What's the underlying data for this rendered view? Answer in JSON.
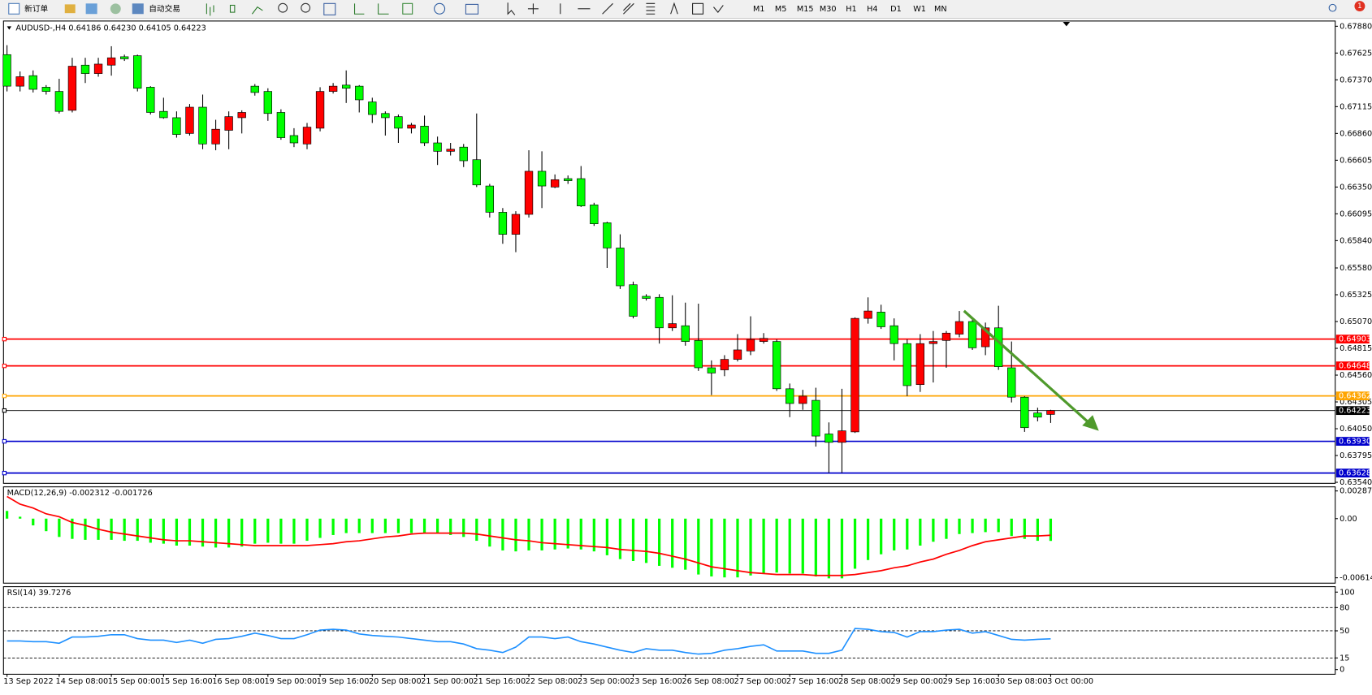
{
  "toolbar": {
    "buttons": [
      "新订单",
      "自动交易"
    ],
    "timeframes": [
      "M1",
      "M5",
      "M15",
      "M30",
      "H1",
      "H4",
      "D1",
      "W1",
      "MN"
    ],
    "badge": "1"
  },
  "chart_data": [
    {
      "type": "candlestick",
      "title": "AUDUSD-,H4  0.64186 0.64230 0.64105 0.64223",
      "categories": [
        "13 Sep 2022",
        null,
        null,
        null,
        "14 Sep 08:00",
        null,
        null,
        null,
        "15 Sep 00:00",
        null,
        null,
        null,
        "15 Sep 16:00",
        null,
        null,
        null,
        "16 Sep 08:00",
        null,
        null,
        null,
        "19 Sep 00:00",
        null,
        null,
        null,
        "19 Sep 16:00",
        null,
        null,
        null,
        "20 Sep 08:00",
        null,
        null,
        null,
        "21 Sep 00:00",
        null,
        null,
        null,
        "21 Sep 16:00",
        null,
        null,
        null,
        "22 Sep 08:00",
        null,
        null,
        null,
        "23 Sep 00:00",
        null,
        null,
        null,
        "23 Sep 16:00",
        null,
        null,
        null,
        "26 Sep 08:00",
        null,
        null,
        null,
        "27 Sep 00:00",
        null,
        null,
        null,
        "27 Sep 16:00",
        null,
        null,
        null,
        "28 Sep 08:00",
        null,
        null,
        null,
        "29 Sep 00:00",
        null,
        null,
        null,
        "29 Sep 16:00",
        null,
        null,
        null,
        "30 Sep 08:00",
        null,
        null,
        null,
        "3 Oct 00:00"
      ],
      "open": [
        0.6761,
        0.6731,
        0.6741,
        0.673,
        0.6726,
        0.6708,
        0.6751,
        0.6743,
        0.6751,
        0.6759,
        0.676,
        0.673,
        0.6707,
        0.6701,
        0.6686,
        0.6711,
        0.6676,
        0.6689,
        0.6701,
        0.6731,
        0.6726,
        0.6706,
        0.6684,
        0.6676,
        0.6691,
        0.6726,
        0.6732,
        0.6731,
        0.6716,
        0.6705,
        0.6702,
        0.6691,
        0.6693,
        0.6677,
        0.6669,
        0.6673,
        0.6661,
        0.6636,
        0.6611,
        0.659,
        0.6609,
        0.665,
        0.6635,
        0.6643,
        0.6643,
        0.6618,
        0.6601,
        0.6577,
        0.6542,
        0.6531,
        0.653,
        0.6501,
        0.6503,
        0.6489,
        0.6463,
        0.6461,
        0.6471,
        0.6479,
        0.6488,
        0.6488,
        0.6443,
        0.6429,
        0.6432,
        0.64,
        0.6392,
        0.6402,
        0.651,
        0.6516,
        0.6503,
        0.6486,
        0.6447,
        0.6486,
        0.6489,
        0.6495,
        0.6507,
        0.6483,
        0.6501,
        0.6463,
        0.6435,
        0.642,
        0.64186
      ],
      "high": [
        0.677,
        0.6745,
        0.6746,
        0.6732,
        0.6738,
        0.6758,
        0.6758,
        0.6758,
        0.6769,
        0.6761,
        0.6761,
        0.6731,
        0.672,
        0.6707,
        0.6714,
        0.6723,
        0.6699,
        0.6707,
        0.6708,
        0.6733,
        0.6729,
        0.6709,
        0.6691,
        0.6696,
        0.673,
        0.6734,
        0.6746,
        0.6732,
        0.672,
        0.6707,
        0.6704,
        0.6696,
        0.6703,
        0.6683,
        0.6677,
        0.6676,
        0.6705,
        0.6638,
        0.6615,
        0.6612,
        0.667,
        0.6669,
        0.6647,
        0.6646,
        0.6655,
        0.662,
        0.6602,
        0.659,
        0.6545,
        0.6533,
        0.6533,
        0.6532,
        0.6525,
        0.6524,
        0.647,
        0.6475,
        0.6495,
        0.6512,
        0.6496,
        0.649,
        0.6448,
        0.6442,
        0.6444,
        0.6411,
        0.6443,
        0.6511,
        0.653,
        0.6523,
        0.651,
        0.649,
        0.6495,
        0.6498,
        0.6498,
        0.6517,
        0.6511,
        0.6506,
        0.6522,
        0.6488,
        0.6436,
        0.6425,
        0.6423
      ],
      "low": [
        0.6726,
        0.6726,
        0.6725,
        0.6723,
        0.6705,
        0.6706,
        0.6734,
        0.674,
        0.6741,
        0.6755,
        0.6726,
        0.6704,
        0.67,
        0.6682,
        0.6684,
        0.6671,
        0.667,
        0.6671,
        0.6686,
        0.6722,
        0.6698,
        0.668,
        0.6673,
        0.6671,
        0.6688,
        0.6724,
        0.6715,
        0.6706,
        0.6696,
        0.6684,
        0.6677,
        0.6686,
        0.6674,
        0.6656,
        0.6665,
        0.6654,
        0.6635,
        0.6606,
        0.6581,
        0.6573,
        0.6606,
        0.6615,
        0.6634,
        0.6638,
        0.6616,
        0.6598,
        0.6558,
        0.6538,
        0.651,
        0.6527,
        0.6486,
        0.6498,
        0.6484,
        0.646,
        0.6437,
        0.6455,
        0.6469,
        0.6475,
        0.6486,
        0.6441,
        0.6416,
        0.6423,
        0.6388,
        0.6363,
        0.6363,
        0.6401,
        0.6505,
        0.65,
        0.647,
        0.6436,
        0.644,
        0.6449,
        0.6463,
        0.6492,
        0.648,
        0.6475,
        0.6461,
        0.643,
        0.6402,
        0.6412,
        0.64105
      ],
      "close": [
        0.6731,
        0.674,
        0.6728,
        0.6726,
        0.6707,
        0.675,
        0.6743,
        0.6752,
        0.6758,
        0.6757,
        0.6729,
        0.6706,
        0.6701,
        0.6685,
        0.6711,
        0.6676,
        0.669,
        0.6702,
        0.6706,
        0.6725,
        0.6705,
        0.6682,
        0.6677,
        0.6692,
        0.6726,
        0.6731,
        0.6729,
        0.6718,
        0.6704,
        0.6701,
        0.6691,
        0.6694,
        0.6677,
        0.6669,
        0.6671,
        0.666,
        0.6637,
        0.6611,
        0.659,
        0.6609,
        0.665,
        0.6636,
        0.6642,
        0.6641,
        0.6617,
        0.66,
        0.6577,
        0.6541,
        0.6512,
        0.6529,
        0.6501,
        0.6505,
        0.6488,
        0.6463,
        0.6458,
        0.6471,
        0.648,
        0.649,
        0.6491,
        0.6443,
        0.6429,
        0.6436,
        0.6398,
        0.6392,
        0.6403,
        0.651,
        0.6517,
        0.6502,
        0.6486,
        0.6446,
        0.6486,
        0.6488,
        0.6496,
        0.6507,
        0.6482,
        0.6501,
        0.6464,
        0.6435,
        0.6406,
        0.6416,
        0.64223
      ],
      "up_color": "#ff0000",
      "down_color": "#00ff00",
      "wick_color": "#000000",
      "ylim": [
        0.6353,
        0.6793
      ],
      "yticks": [
        {
          "value": 0.6788,
          "label": "0.67880"
        },
        0.67625,
        {
          "value": 0.6737,
          "label": "0.67370"
        },
        0.67115,
        {
          "value": 0.6686,
          "label": "0.66860"
        },
        0.66605,
        {
          "value": 0.6635,
          "label": "0.66350"
        },
        0.66095,
        {
          "value": 0.6584,
          "label": "0.65840"
        },
        {
          "value": 0.6558,
          "label": "0.65580"
        },
        0.65325,
        {
          "value": 0.6507,
          "label": "0.65070"
        },
        0.64815,
        {
          "value": 0.6456,
          "label": "0.64560"
        },
        0.64305,
        {
          "value": 0.6405,
          "label": "0.64050"
        },
        0.63795,
        {
          "value": 0.6354,
          "label": "0.63540"
        }
      ],
      "hlines": [
        {
          "value": 0.64903,
          "color": "#ff0000"
        },
        {
          "value": 0.64648,
          "color": "#ff0000"
        },
        {
          "value": 0.64362,
          "color": "#ffa500"
        },
        {
          "value": 0.64223,
          "color": "#000000"
        },
        {
          "value": 0.6393,
          "label": "0.63930",
          "color": "#0000cc"
        },
        {
          "value": 0.63628,
          "color": "#0000cc"
        }
      ]
    },
    {
      "type": "macd",
      "title": "MACD(12,26,9) -0.002312 -0.001726",
      "histogram": {
        "color": "#00ff00",
        "values": [
          0.0008,
          0.0002,
          -0.0007,
          -0.0013,
          -0.0019,
          -0.0021,
          -0.0022,
          -0.0022,
          -0.0022,
          -0.0023,
          -0.0023,
          -0.0025,
          -0.0026,
          -0.0028,
          -0.0028,
          -0.0029,
          -0.003,
          -0.003,
          -0.0029,
          -0.0026,
          -0.0025,
          -0.0026,
          -0.0026,
          -0.0023,
          -0.002,
          -0.0017,
          -0.0015,
          -0.0015,
          -0.0015,
          -0.0015,
          -0.0015,
          -0.0015,
          -0.0015,
          -0.0015,
          -0.0017,
          -0.0019,
          -0.0023,
          -0.0029,
          -0.0033,
          -0.0034,
          -0.0033,
          -0.0033,
          -0.0032,
          -0.0031,
          -0.0032,
          -0.0034,
          -0.0038,
          -0.0042,
          -0.0044,
          -0.0046,
          -0.0049,
          -0.0051,
          -0.0053,
          -0.0058,
          -0.006,
          -0.0061,
          -0.0061,
          -0.0059,
          -0.0057,
          -0.0056,
          -0.0057,
          -0.0057,
          -0.006,
          -0.0062,
          -0.0062,
          -0.0052,
          -0.0043,
          -0.0037,
          -0.0033,
          -0.0032,
          -0.0028,
          -0.0024,
          -0.0021,
          -0.0016,
          -0.0015,
          -0.0014,
          -0.0014,
          -0.0018,
          -0.0021,
          -0.0023,
          -0.002312
        ]
      },
      "signal": {
        "color": "#ff0000",
        "values": [
          0.0023,
          0.0015,
          0.0011,
          0.0005,
          0.0002,
          -0.0004,
          -0.0007,
          -0.0011,
          -0.0014,
          -0.0016,
          -0.0018,
          -0.002,
          -0.0022,
          -0.0023,
          -0.0023,
          -0.0024,
          -0.0025,
          -0.0026,
          -0.0027,
          -0.0028,
          -0.0028,
          -0.0028,
          -0.0028,
          -0.0028,
          -0.0027,
          -0.0026,
          -0.0024,
          -0.0023,
          -0.0021,
          -0.0019,
          -0.0018,
          -0.0016,
          -0.0015,
          -0.0015,
          -0.0015,
          -0.0015,
          -0.0016,
          -0.0018,
          -0.002,
          -0.0022,
          -0.0023,
          -0.0025,
          -0.0026,
          -0.0027,
          -0.0028,
          -0.0029,
          -0.003,
          -0.0032,
          -0.0033,
          -0.0034,
          -0.0036,
          -0.0039,
          -0.0042,
          -0.0046,
          -0.005,
          -0.0052,
          -0.0054,
          -0.0056,
          -0.0057,
          -0.0058,
          -0.0058,
          -0.0058,
          -0.0059,
          -0.0059,
          -0.0059,
          -0.0058,
          -0.0056,
          -0.0054,
          -0.0051,
          -0.0049,
          -0.0045,
          -0.0042,
          -0.0037,
          -0.0033,
          -0.0028,
          -0.0024,
          -0.0022,
          -0.002,
          -0.0018,
          -0.0018,
          -0.001726
        ]
      },
      "ylim": [
        -0.0067,
        0.0033
      ],
      "yticks": [
        0.002876,
        {
          "value": 0,
          "label": "0.00"
        },
        -0.006142
      ]
    },
    {
      "type": "line",
      "title": "RSI(14) 39.7276",
      "color": "#1e90ff",
      "values": [
        37,
        37,
        36,
        36,
        34,
        42,
        42,
        43,
        45,
        45,
        40,
        38,
        38,
        35,
        38,
        34,
        39,
        40,
        43,
        47,
        44,
        40,
        40,
        45,
        51,
        52,
        51,
        46,
        44,
        43,
        42,
        40,
        38,
        36,
        36,
        33,
        27,
        25,
        22,
        29,
        42,
        42,
        40,
        42,
        36,
        33,
        29,
        25,
        22,
        27,
        25,
        25,
        22,
        20,
        21,
        25,
        27,
        30,
        32,
        24,
        24,
        24,
        21,
        21,
        25,
        53,
        52,
        49,
        48,
        42,
        49,
        49,
        51,
        52,
        47,
        49,
        44,
        39,
        38,
        39,
        39.7276
      ],
      "ylim": [
        -6,
        107
      ],
      "yticks": [
        100,
        80,
        50,
        15,
        0
      ],
      "levels": [
        80,
        50,
        15
      ]
    }
  ]
}
